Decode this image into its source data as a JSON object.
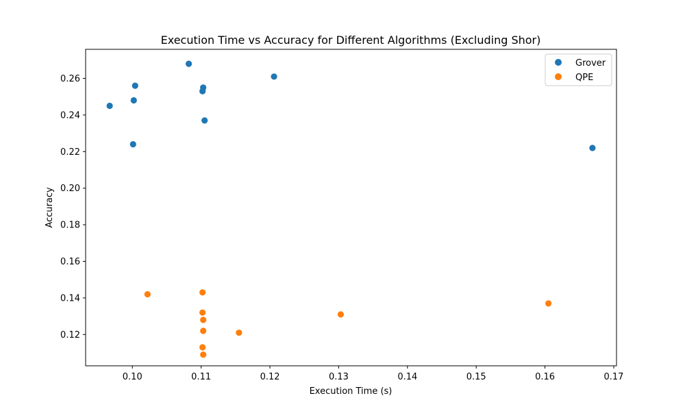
{
  "chart_data": {
    "type": "scatter",
    "title": "Execution Time vs Accuracy for Different Algorithms (Excluding Shor)",
    "xlabel": "Execution Time (s)",
    "ylabel": "Accuracy",
    "xlim": [
      0.0932,
      0.1704
    ],
    "ylim": [
      0.1029,
      0.2759
    ],
    "xticks": [
      0.1,
      0.11,
      0.12,
      0.13,
      0.14,
      0.15,
      0.16,
      0.17
    ],
    "xtick_labels": [
      "0.10",
      "0.11",
      "0.12",
      "0.13",
      "0.14",
      "0.15",
      "0.16",
      "0.17"
    ],
    "yticks": [
      0.12,
      0.14,
      0.16,
      0.18,
      0.2,
      0.22,
      0.24,
      0.26
    ],
    "ytick_labels": [
      "0.12",
      "0.14",
      "0.16",
      "0.18",
      "0.20",
      "0.22",
      "0.24",
      "0.26"
    ],
    "grid": false,
    "legend_position": "top-right",
    "series": [
      {
        "name": "Grover",
        "color": "#1f77b4",
        "points": [
          {
            "x": 0.0967,
            "y": 0.245
          },
          {
            "x": 0.1001,
            "y": 0.224
          },
          {
            "x": 0.1002,
            "y": 0.248
          },
          {
            "x": 0.1004,
            "y": 0.256
          },
          {
            "x": 0.1082,
            "y": 0.268
          },
          {
            "x": 0.1102,
            "y": 0.253
          },
          {
            "x": 0.1103,
            "y": 0.255
          },
          {
            "x": 0.1105,
            "y": 0.237
          },
          {
            "x": 0.1206,
            "y": 0.261
          },
          {
            "x": 0.1669,
            "y": 0.222
          }
        ]
      },
      {
        "name": "QPE",
        "color": "#ff7f0e",
        "points": [
          {
            "x": 0.1022,
            "y": 0.142
          },
          {
            "x": 0.1102,
            "y": 0.143
          },
          {
            "x": 0.1102,
            "y": 0.132
          },
          {
            "x": 0.1103,
            "y": 0.128
          },
          {
            "x": 0.1103,
            "y": 0.122
          },
          {
            "x": 0.1102,
            "y": 0.113
          },
          {
            "x": 0.1103,
            "y": 0.109
          },
          {
            "x": 0.1155,
            "y": 0.121
          },
          {
            "x": 0.1303,
            "y": 0.131
          },
          {
            "x": 0.1605,
            "y": 0.137
          }
        ]
      }
    ]
  }
}
